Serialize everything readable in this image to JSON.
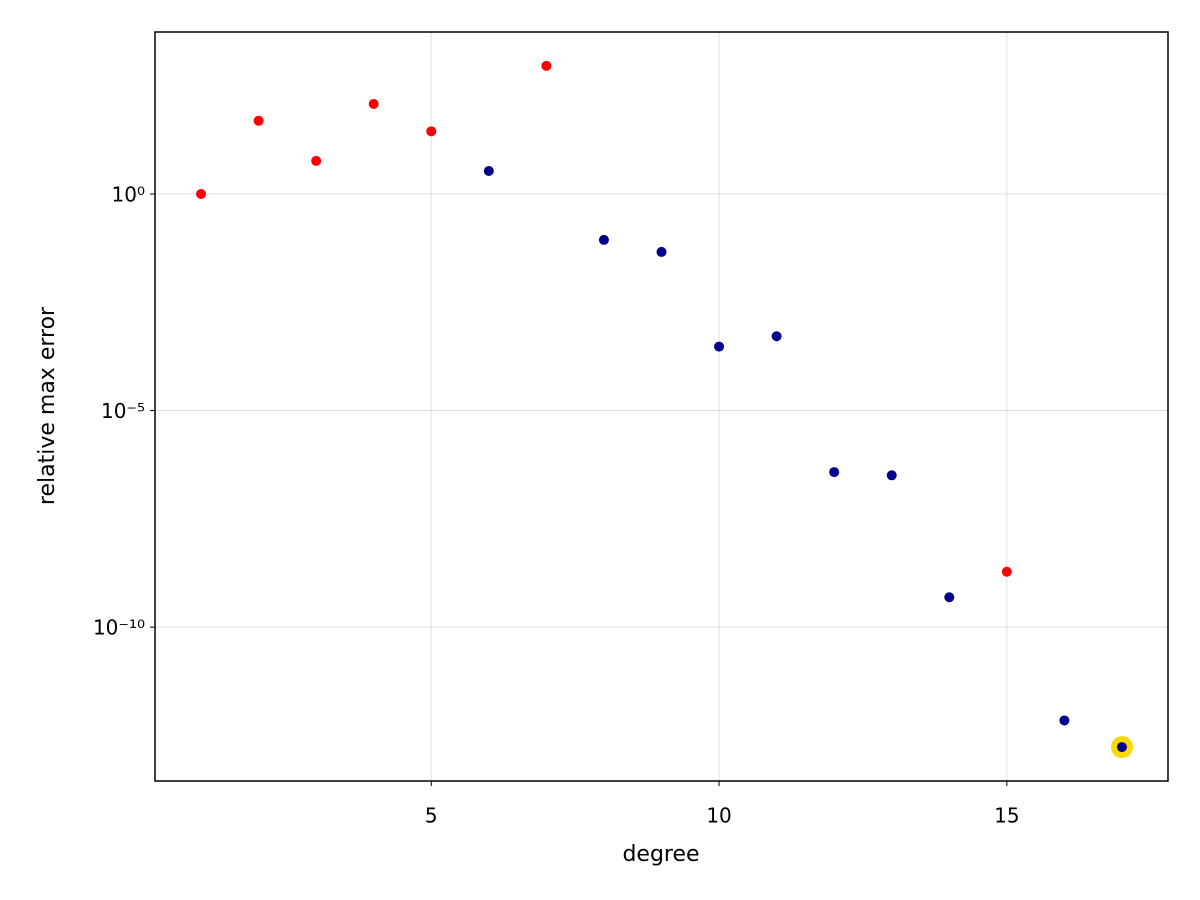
{
  "chart_data": {
    "type": "scatter",
    "x_label": "degree",
    "y_label": "relative max error",
    "x": [
      1,
      2,
      3,
      4,
      5,
      6,
      7,
      8,
      9,
      10,
      11,
      12,
      13,
      14,
      15,
      16,
      17
    ],
    "values": [
      1,
      49,
      5.8,
      120,
      28,
      3.4,
      910,
      0.087,
      0.046,
      0.0003,
      0.00052,
      3.8e-07,
      3.2e-07,
      4.9e-10,
      1.9e-09,
      7e-13,
      1.7e-13
    ],
    "colors": [
      "#ff0000",
      "#ff0000",
      "#ff0000",
      "#ff0000",
      "#ff0000",
      "#00008b",
      "#ff0000",
      "#00008b",
      "#00008b",
      "#00008b",
      "#00008b",
      "#00008b",
      "#00008b",
      "#00008b",
      "#ff0000",
      "#00008b",
      "#00008b"
    ],
    "highlight": {
      "index": 16,
      "color": "#ffd700"
    },
    "xlim": [
      0.2,
      17.8
    ],
    "xticks": [
      5,
      10,
      15
    ],
    "ylim": [
      2.8e-14,
      5500
    ],
    "y_log": true,
    "yticks": [
      {
        "value": 1,
        "label": "10⁰"
      },
      {
        "value": 1e-05,
        "label": "10⁻⁵"
      },
      {
        "value": 1e-10,
        "label": "10⁻¹⁰"
      }
    ],
    "grid": true
  }
}
